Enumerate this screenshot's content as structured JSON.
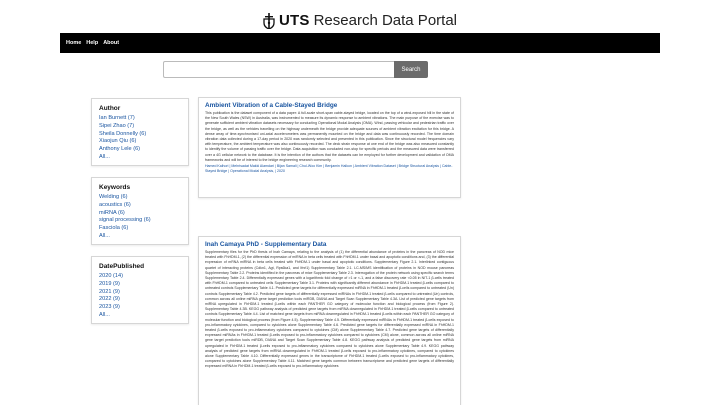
{
  "brand": {
    "logo_text": "UTS",
    "title": "Research Data Portal",
    "crest_icon": "uts-crest-icon"
  },
  "nav": {
    "items": [
      "Home",
      "Help",
      "About"
    ]
  },
  "search": {
    "placeholder": "",
    "value": "",
    "button_label": "Search"
  },
  "facets": {
    "author": {
      "title": "Author",
      "items": [
        "Ian Burnett (7)",
        "Sipei Zhao (7)",
        "Sheila Donnelly (6)",
        "Xiaojun Qiu (6)",
        "Anthony Lele (6)",
        "All..."
      ]
    },
    "keywords": {
      "title": "Keywords",
      "items": [
        "Welding (6)",
        "acoustics (6)",
        "miRNA (6)",
        "signal processing (6)",
        "Fasciola (6)",
        "All..."
      ]
    },
    "date_published": {
      "title": "DatePublished",
      "items": [
        "2020 (14)",
        "2019 (9)",
        "2021 (9)",
        "2022 (9)",
        "2023 (9)",
        "All..."
      ]
    }
  },
  "results": [
    {
      "title": "Ambient Vibration of a Cable-Stayed Bridge",
      "abstract": "This publication is the dataset component of a data paper: A full-scale short-span cable-stayed bridge, located on the top of a wind-exposed hill in the state of the New South Wales (NSW) in Australia, was instrumented to measure its dynamic response to ambient vibrations. The main purpose of the exercise was to generate sufficient ambient vibration datasets necessary for conducting Operational Modal Analysis (OMA). Wind, passing vehicular and pedestrian traffic over the bridge, as well as the vehicles travelling on the highway underneath the bridge provide adequate sources of ambient vibration excitation for this bridge. A dense array of time-synchronised uni-axial accelerometers was permanently mounted on the bridge and data was continuously recorded. The time domain vibration data collected during a 17-day period in 2020 was randomly selected and presented in this publication. Since the structural model frequencies vary with temperature, the ambient temperature was also continuously recorded. The deck strain response at one end of the bridge was also measured constantly to identify the volume of passing traffic over the bridge. Data acquisition was conducted non-stop for specific periods and the measured data were transferred over a 4G cellular network to the database. It is the intention of the authors that the datasets can be employed for further development and validation of OMA frameworks and will be of interest to the bridge engineering research community.",
      "meta": "Hamed Kalhori | Mehrisadat Makki Alamdari | Bijan Samali | Chul-Woo Kim | Benjamin Halkon | Ambient Vibration Dataset | Bridge Structural Analysis | Cable-Stayed Bridge | Operational Modal Analysis, | 2020"
    },
    {
      "title": "Inah Camaya PhD - Supplementary Data",
      "abstract": "Supplementary files for the PhD thesis of Inah Camaya, relating to the analysis of (1) the differential abundance of proteins in the pancreas of NOD mice treated with FhHDM-1, (2) the differential expression of miRNA in beta cells treated with FhHDM-1 under basal and apoptotic conditions and, (3) the differential expression of mRNA miRNA in beta cells treated with FhHDM-1 under basal and apoptotic conditions. Supplementary Figure 2.1. Interlinked contiguous quartet of interacting proteins (Cdkn1, Agt, Rps6ka1, and Ifnrl1) Supplementary Table 2.1. LC-MS/MS identification of proteins in NOD mouse pancreas Supplementary Table 2.2. Proteins identified in the pancreas of mice Supplementary Table 2.3. Interrogation of the protein network using specific search terms Supplementary Table 2.4. Differentially expressed genes with a logarithmic fold change of >1 or <-1, and a false discovery rate <0.05 in NIT-1 β-cells treated with FhHDM-1 compared to untreated cells Supplementary Table 3.1. Proteins with significantly different abundance in FhHDM-1 treated β-cells compared to untreated controls Supplementary Table 4.1. Predicted gene targets for differentially expressed miRNA in FhHDM-1 treated β-cells compared to untreated (Un) controls Supplementary Table 4.2. Predicted gene targets of differentially expressed miRNAs in FhHDM-1 treated β-cells compared to untreated (Un) controls, common across all online miRNA gene target prediction tools miRDB, DIANA and Target Scan Supplementary Table 4.3A. List of predicted gene targets from miRNA upregulated in FhHDM-1 treated β-cells within each PANTHER GO category of molecular function and biological process (from Figure 2). Supplementary Table 4.3B. KEGG pathway analysis of predicted gene targets from miRNA downregulated in FhHDM-1 treated β-cells compared to untreated controls Supplementary Table 4.4. List of matched gene targets from miRNA downregulated in FhHDM-1 treated β-cells within each PANTHER GO category of molecular function and biological process (from Figure 4.5). Supplementary Table 4.5. Differentially expressed miRNAs in FhHDM-1 treated β-cells exposed to pro-inflammatory cytokines, compared to cytokines alone Supplementary Table 4.6. Predicted gene targets for differentially expressed miRNA in FhHDM-1 treated β-cells exposed to pro-inflammatory cytokines compared to cytokines (CM) alone Supplementary Table 4.7. Predicted gene targets of differentially expressed miRNAs in FhHDM-1 treated β-cells exposed to pro-inflammatory cytokines compared to cytokines (CM) alone, common across all online miRNA gene target prediction tools miRDB, DIANA and Target Scan Supplementary Table 4.8. KEGG pathway analysis of predicted gene targets from miRNA upregulated in FhHDM-1 treated β-cells exposed to pro-inflammatory cytokines compared to cytokines alone Supplementary Table 4.9. KEGG pathway analysis of predicted gene targets from miRNA downregulated in FhHDM-1 treated β-cells exposed to pro-inflammatory cytokines, compared to cytokines alone Supplementary Table 4.10. Differentially expressed genes in the transcriptome of FhHDM-1 treated β-cells exposed to pro-inflammatory cytokines, compared to cytokines alone Supplementary Table 4.11. Matched gene targets common between transcriptome and predicted gene targets of differentially expressed miRNA in FhHDM-1 treated β-cells exposed to pro-inflammatory cytokines",
      "meta": ""
    }
  ],
  "colors": {
    "link": "#1a55a0",
    "navbar": "#000000",
    "search_button": "#6b6b6b"
  }
}
